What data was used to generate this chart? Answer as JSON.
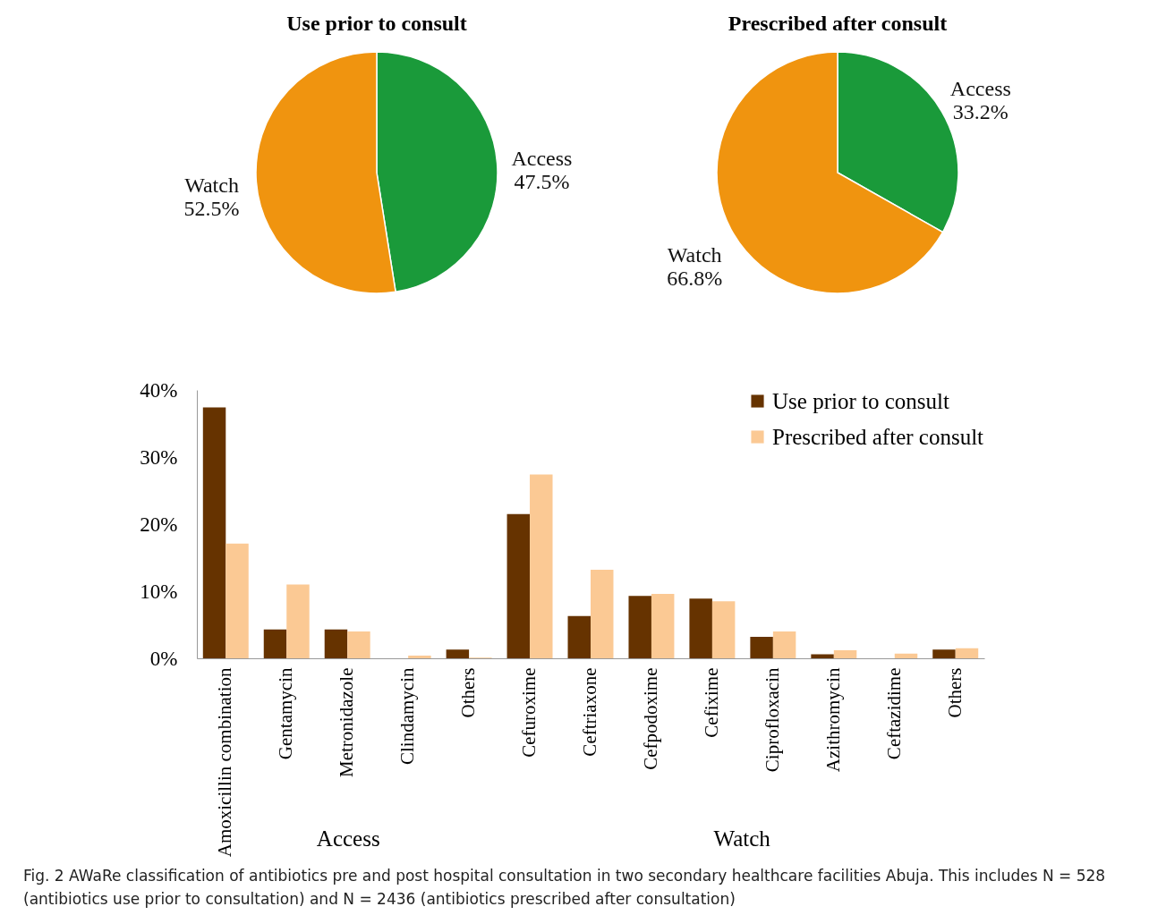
{
  "chart_data": [
    {
      "type": "pie",
      "title": "Use prior to consult",
      "categories": [
        "Access",
        "Watch"
      ],
      "values": [
        47.5,
        52.5
      ],
      "colors": [
        "#1a9a3a",
        "#f0940f"
      ],
      "value_labels": [
        "47.5%",
        "52.5%"
      ]
    },
    {
      "type": "pie",
      "title": "Prescribed after consult",
      "categories": [
        "Access",
        "Watch"
      ],
      "values": [
        33.2,
        66.8
      ],
      "colors": [
        "#1a9a3a",
        "#f0940f"
      ],
      "value_labels": [
        "33.2%",
        "66.8%"
      ]
    },
    {
      "type": "bar",
      "categories": [
        "Amoxicillin combination",
        "Gentamycin",
        "Metronidazole",
        "Clindamycin",
        "Others",
        "Cefuroxime",
        "Ceftriaxone",
        "Cefpodoxime",
        "Cefixime",
        "Ciprofloxacin",
        "Azithromycin",
        "Ceftazidime",
        "Others"
      ],
      "series": [
        {
          "name": "Use prior to consult",
          "color": "#663300",
          "values": [
            37.4,
            4.3,
            4.3,
            0,
            1.3,
            21.5,
            6.3,
            9.3,
            8.9,
            3.2,
            0.6,
            0,
            1.3
          ]
        },
        {
          "name": "Prescribed after consult",
          "color": "#fbc994",
          "values": [
            17.1,
            11.0,
            4.0,
            0.4,
            0.1,
            27.4,
            13.2,
            9.6,
            8.5,
            4.0,
            1.2,
            0.7,
            1.5
          ]
        }
      ],
      "ylim": [
        0,
        40
      ],
      "yticks": [
        {
          "value": 0,
          "label": "0%"
        },
        {
          "value": 10,
          "label": "10%"
        },
        {
          "value": 20,
          "label": "20%"
        },
        {
          "value": 30,
          "label": "30%"
        },
        {
          "value": 40,
          "label": "40%"
        }
      ],
      "grid": false,
      "legend": "top right",
      "annotations": [
        "Access",
        "Watch",
        "Fig. 2  AWaRe classification of antibiotics pre and post hospital consultation in two secondary healthcare facilities Abuja.  This includes N = 528 (antibiotics use prior to consultation) and N = 2436 (antibiotics prescribed after consultation)"
      ]
    }
  ]
}
